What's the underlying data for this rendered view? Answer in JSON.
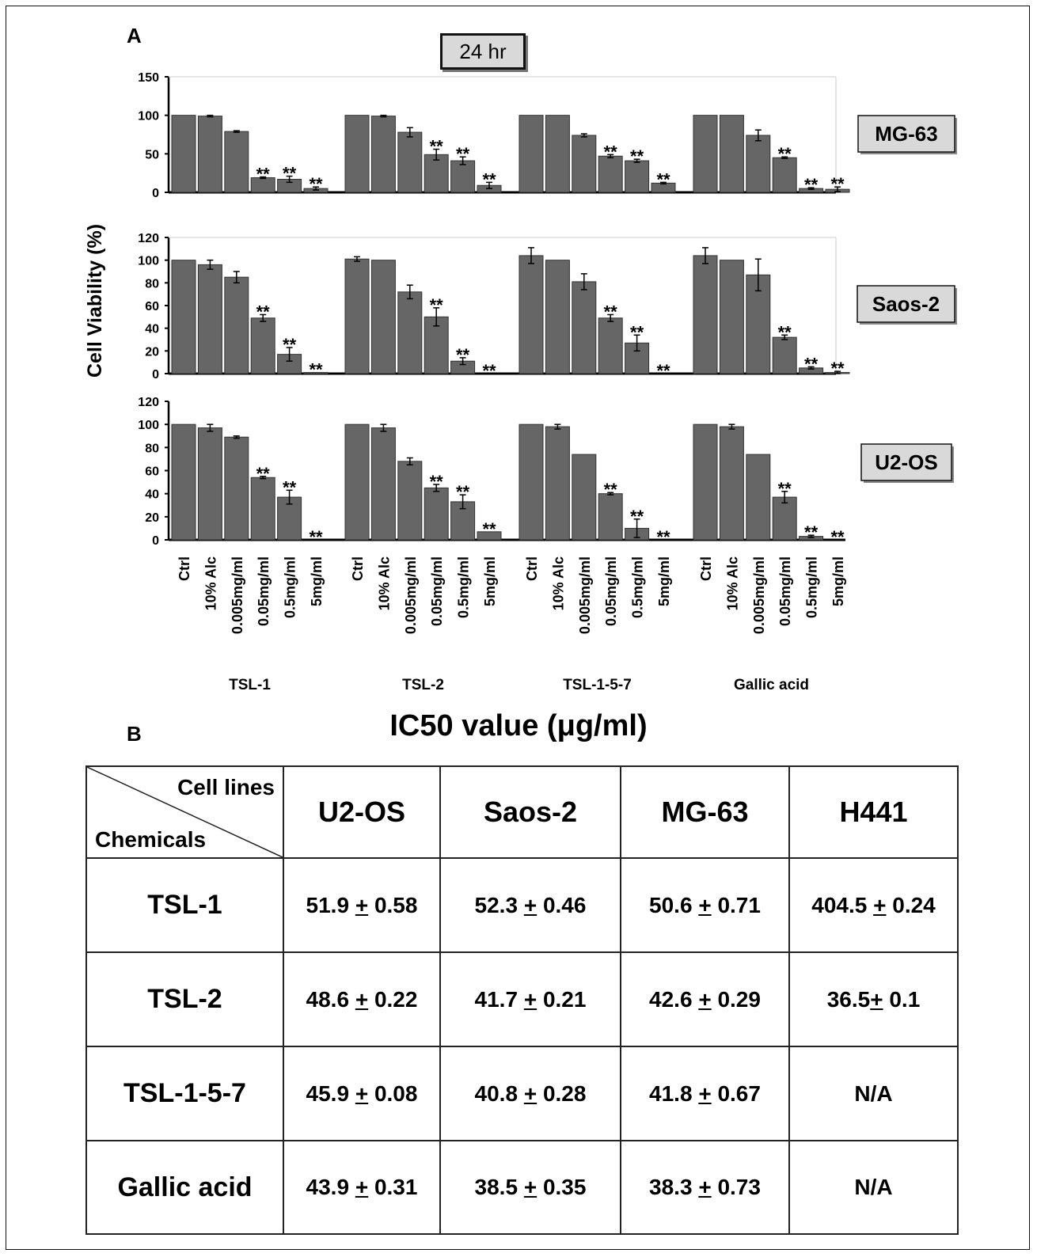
{
  "panel_a_label": "A",
  "panel_b_label": "B",
  "time_label": "24 hr",
  "y_axis_label": "Cell Viability (%)",
  "colors": {
    "bar": "#666666",
    "bar_stroke": "#333333",
    "cell_label_bg": "#d9d9d9"
  },
  "chart_data": [
    {
      "type": "bar",
      "cell_line": "MG-63",
      "ylim": [
        0,
        150
      ],
      "yticks": [
        0,
        50,
        100,
        150
      ],
      "groups": [
        "TSL-1",
        "TSL-2",
        "TSL-1-5-7",
        "Gallic acid"
      ],
      "categories": [
        "Ctrl",
        "10% Alc",
        "0.005mg/ml",
        "0.05mg/ml",
        "0.5mg/ml",
        "5mg/ml"
      ],
      "values": [
        [
          100,
          99,
          79,
          19,
          17,
          5
        ],
        [
          100,
          99,
          78,
          49,
          41,
          9
        ],
        [
          100,
          100,
          74,
          47,
          41,
          12
        ],
        [
          100,
          100,
          74,
          45,
          5,
          4
        ]
      ],
      "errors": [
        [
          0,
          1,
          1,
          1,
          4,
          2
        ],
        [
          0,
          1,
          6,
          7,
          5,
          4
        ],
        [
          0,
          0,
          2,
          2,
          2,
          1
        ],
        [
          0,
          0,
          7,
          1,
          1,
          3
        ]
      ],
      "significance": [
        [
          "",
          "",
          "",
          "**",
          "**",
          "**"
        ],
        [
          "",
          "",
          "",
          "**",
          "**",
          "**"
        ],
        [
          "",
          "",
          "",
          "**",
          "**",
          "**"
        ],
        [
          "",
          "",
          "",
          "**",
          "**",
          "**"
        ]
      ]
    },
    {
      "type": "bar",
      "cell_line": "Saos-2",
      "ylim": [
        0,
        120
      ],
      "yticks": [
        0,
        20,
        40,
        60,
        80,
        100,
        120
      ],
      "groups": [
        "TSL-1",
        "TSL-2",
        "TSL-1-5-7",
        "Gallic acid"
      ],
      "categories": [
        "Ctrl",
        "10% Alc",
        "0.005mg/ml",
        "0.05mg/ml",
        "0.5mg/ml",
        "5mg/ml"
      ],
      "values": [
        [
          100,
          96,
          85,
          49,
          17,
          1
        ],
        [
          101,
          100,
          72,
          50,
          11,
          0
        ],
        [
          104,
          100,
          81,
          49,
          27,
          0
        ],
        [
          104,
          100,
          87,
          32,
          5,
          1
        ]
      ],
      "errors": [
        [
          0,
          4,
          5,
          3,
          6,
          0
        ],
        [
          2,
          0,
          6,
          8,
          3,
          0
        ],
        [
          7,
          0,
          7,
          3,
          7,
          0
        ],
        [
          7,
          0,
          14,
          2,
          1,
          1
        ]
      ],
      "significance": [
        [
          "",
          "",
          "",
          "**",
          "**",
          "**"
        ],
        [
          "",
          "",
          "",
          "**",
          "**",
          "**"
        ],
        [
          "",
          "",
          "",
          "**",
          "**",
          "**"
        ],
        [
          "",
          "",
          "",
          "**",
          "**",
          "**"
        ]
      ]
    },
    {
      "type": "bar",
      "cell_line": "U2-OS",
      "ylim": [
        0,
        120
      ],
      "yticks": [
        0,
        20,
        40,
        60,
        80,
        100,
        120
      ],
      "groups": [
        "TSL-1",
        "TSL-2",
        "TSL-1-5-7",
        "Gallic acid"
      ],
      "categories": [
        "Ctrl",
        "10% Alc",
        "0.005mg/ml",
        "0.05mg/ml",
        "0.5mg/ml",
        "5mg/ml"
      ],
      "values": [
        [
          100,
          97,
          89,
          54,
          37,
          0
        ],
        [
          100,
          97,
          68,
          45,
          33,
          7
        ],
        [
          100,
          98,
          74,
          40,
          10,
          0
        ],
        [
          100,
          98,
          74,
          37,
          3,
          0
        ]
      ],
      "errors": [
        [
          0,
          3,
          1,
          1,
          6,
          0
        ],
        [
          0,
          3,
          3,
          3,
          6,
          0
        ],
        [
          0,
          2,
          0,
          1,
          8,
          0
        ],
        [
          0,
          2,
          0,
          5,
          1,
          0
        ]
      ],
      "significance": [
        [
          "",
          "",
          "",
          "**",
          "**",
          "**"
        ],
        [
          "",
          "",
          "",
          "**",
          "**",
          "**"
        ],
        [
          "",
          "",
          "",
          "**",
          "**",
          "**"
        ],
        [
          "",
          "",
          "",
          "**",
          "**",
          "**"
        ]
      ]
    }
  ],
  "ic50": {
    "title": "IC50 value (μg/ml)",
    "corner_top": "Cell lines",
    "corner_bottom": "Chemicals",
    "columns": [
      "U2-OS",
      "Saos-2",
      "MG-63",
      "H441"
    ],
    "rows": [
      {
        "chemical": "TSL-1",
        "cells": [
          [
            "51.9 ",
            "+",
            " 0.58"
          ],
          [
            "52.3 ",
            "+",
            " 0.46"
          ],
          [
            "50.6 ",
            "+",
            " 0.71"
          ],
          [
            "404.5 ",
            "+",
            " 0.24"
          ]
        ]
      },
      {
        "chemical": "TSL-2",
        "cells": [
          [
            "48.6 ",
            "+",
            " 0.22"
          ],
          [
            "41.7 ",
            "+",
            " 0.21"
          ],
          [
            "42.6 ",
            "+",
            " 0.29"
          ],
          [
            "36.5",
            "+",
            " 0.1"
          ]
        ]
      },
      {
        "chemical": "TSL-1-5-7",
        "cells": [
          [
            "45.9 ",
            "+",
            " 0.08"
          ],
          [
            "40.8 ",
            "+",
            " 0.28"
          ],
          [
            "41.8 ",
            "+",
            " 0.67"
          ],
          [
            "N/A",
            "",
            ""
          ]
        ]
      },
      {
        "chemical": "Gallic acid",
        "cells": [
          [
            "43.9 ",
            "+",
            " 0.31"
          ],
          [
            "38.5 ",
            "+",
            " 0.35"
          ],
          [
            "38.3 ",
            "+",
            " 0.73"
          ],
          [
            "N/A",
            "",
            ""
          ]
        ]
      }
    ]
  }
}
